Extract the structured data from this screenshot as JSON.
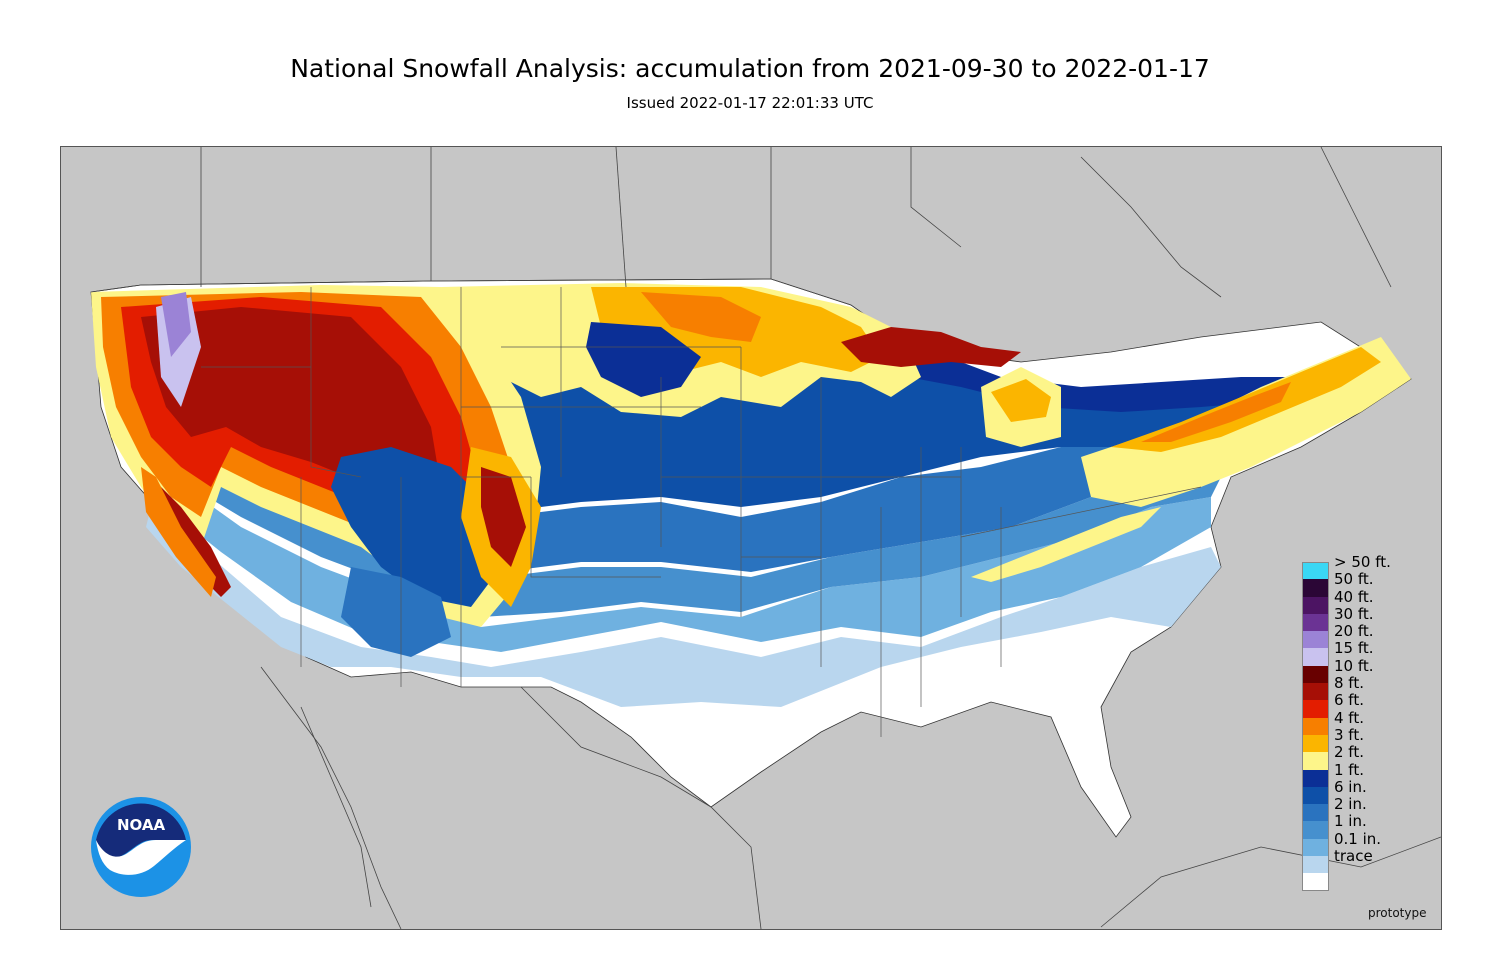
{
  "title": "National Snowfall Analysis: accumulation from 2021-09-30 to 2022-01-17",
  "subtitle": "Issued 2022-01-17 22:01:33 UTC",
  "watermark": "prototype",
  "logo": {
    "text": "NOAA",
    "icon": "noaa-logo-icon"
  },
  "colors": {
    "land_outside": "#c6c6c6",
    "water": "#c6c6c6",
    "border_lines": "#444444"
  },
  "legend": [
    {
      "label": "> 50 ft.",
      "color": "#3ad7f4"
    },
    {
      "label": "50 ft.",
      "color": "#2b0636"
    },
    {
      "label": "40 ft.",
      "color": "#4c1463"
    },
    {
      "label": "30 ft.",
      "color": "#6b3394"
    },
    {
      "label": "20 ft.",
      "color": "#9b83d6"
    },
    {
      "label": "15 ft.",
      "color": "#c9c2ef"
    },
    {
      "label": "10 ft.",
      "color": "#680000"
    },
    {
      "label": "8 ft.",
      "color": "#a60f06"
    },
    {
      "label": "6 ft.",
      "color": "#e31d00"
    },
    {
      "label": "4 ft.",
      "color": "#f77f00"
    },
    {
      "label": "3 ft.",
      "color": "#fbb500"
    },
    {
      "label": "2 ft.",
      "color": "#fdf58a"
    },
    {
      "label": "1 ft.",
      "color": "#0b2f96"
    },
    {
      "label": "6 in.",
      "color": "#0e50a8"
    },
    {
      "label": "2 in.",
      "color": "#2a73bf"
    },
    {
      "label": "1 in.",
      "color": "#4690ce"
    },
    {
      "label": "0.1 in.",
      "color": "#6fb1e0"
    },
    {
      "label": "trace",
      "color": "#b9d6ee"
    },
    {
      "label": "",
      "color": "#ffffff"
    }
  ]
}
